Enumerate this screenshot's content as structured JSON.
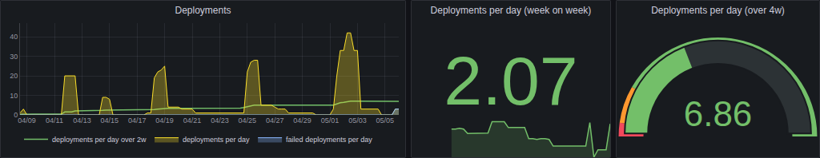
{
  "chart_data": [
    {
      "type": "line",
      "title": "Deployments",
      "categories": [
        null,
        null,
        "04/09",
        null,
        null,
        null,
        null,
        null,
        null,
        null,
        "04/11",
        null,
        null,
        null,
        null,
        null,
        null,
        null,
        "04/13",
        null,
        null,
        null,
        null,
        null,
        null,
        null,
        "04/15",
        null,
        null,
        null,
        null,
        null,
        null,
        null,
        "04/17",
        null,
        null,
        null,
        null,
        null,
        null,
        null,
        "04/19",
        null,
        null,
        null,
        null,
        null,
        null,
        null,
        "04/21",
        null,
        null,
        null,
        null,
        null,
        null,
        null,
        "04/23",
        null,
        null,
        null,
        null,
        null,
        null,
        null,
        "04/25",
        null,
        null,
        null,
        null,
        null,
        null,
        null,
        "04/27",
        null,
        null,
        null,
        null,
        null,
        null,
        null,
        "04/29",
        null,
        null,
        null,
        null,
        null,
        null,
        null,
        "05/01",
        null,
        null,
        null,
        null,
        null,
        null,
        null,
        "05/03",
        null,
        null,
        null,
        null,
        null,
        null,
        null,
        "05/05",
        null,
        null,
        null,
        null
      ],
      "series": [
        {
          "name": "deployments per day over 2w",
          "color": "#73bf69",
          "type": "line",
          "values": [
            0.3,
            0.4,
            0.4,
            0.4,
            0.4,
            0.4,
            0.4,
            0.4,
            0.4,
            0.4,
            0.4,
            0.4,
            0.4,
            1.5,
            1.5,
            1.5,
            2,
            2,
            2,
            2,
            2,
            2,
            2,
            2,
            2.3,
            2.5,
            2.5,
            2.5,
            2.5,
            2.5,
            2.5,
            2.5,
            2.5,
            2.5,
            2.5,
            2.5,
            2.5,
            2.6,
            2.6,
            2.8,
            3,
            3.2,
            3.4,
            3.4,
            3.4,
            3.4,
            3.5,
            3.5,
            3.5,
            3.5,
            3.5,
            3.5,
            3.5,
            3.5,
            3.5,
            3.5,
            3.5,
            3.5,
            3.5,
            3.5,
            3.5,
            3.5,
            3.5,
            3.5,
            3.5,
            3.8,
            4.2,
            4.6,
            5,
            5,
            5,
            5,
            5,
            5,
            5,
            5,
            5,
            5,
            4.8,
            4.8,
            4.8,
            4.8,
            4.8,
            4.8,
            4.8,
            4.8,
            4.8,
            4.8,
            4.8,
            4.8,
            4.8,
            5,
            5.6,
            6.2,
            6.4,
            6.8,
            7,
            7,
            7,
            7,
            7,
            7,
            6.9,
            6.9,
            6.9,
            6.9,
            6.9,
            6.9,
            6.9,
            6.9,
            6.9
          ]
        },
        {
          "name": "deployments per day",
          "color": "#fade2a",
          "type": "area",
          "values": [
            1,
            3,
            0,
            0,
            0,
            0,
            0,
            0,
            0,
            0,
            0,
            0,
            0,
            20,
            20,
            20,
            20,
            0,
            0,
            0,
            0,
            0,
            0,
            0,
            9,
            9,
            8,
            0,
            0,
            0,
            0,
            0,
            0,
            0,
            0,
            0,
            0,
            1,
            1,
            19,
            22,
            23,
            25,
            4,
            4,
            4,
            4,
            3,
            3,
            3,
            3,
            1,
            1,
            1,
            1,
            1,
            1,
            1,
            1,
            1,
            1,
            1,
            1,
            1,
            1,
            1,
            22,
            27,
            28,
            28,
            5,
            5,
            5,
            5,
            4,
            3,
            3,
            3,
            1,
            1,
            1,
            1,
            1,
            1,
            1,
            1,
            0,
            0,
            0,
            0,
            0,
            3,
            20,
            33,
            33,
            42,
            42,
            33,
            33,
            3,
            3,
            3,
            3,
            3,
            3,
            0,
            0,
            0,
            0,
            3,
            3
          ]
        },
        {
          "name": "failed deployments per day",
          "color": "#8ab8ff",
          "type": "area",
          "values": [
            0,
            0,
            0,
            0,
            0,
            0,
            0,
            0,
            0,
            0,
            0,
            0,
            0,
            0,
            0,
            0,
            0,
            0,
            0,
            0,
            0,
            0,
            0,
            0,
            0,
            0,
            0,
            0,
            0,
            0,
            0,
            0,
            0,
            0,
            0,
            0,
            0,
            0,
            0,
            0,
            0,
            0,
            0,
            0,
            0,
            0,
            0,
            0,
            0,
            0,
            0,
            0,
            0,
            0,
            0,
            0,
            0,
            0,
            0,
            0,
            0,
            0,
            0,
            0,
            0,
            0,
            0,
            0,
            0,
            0,
            0,
            0,
            0,
            0,
            0,
            0,
            0,
            0,
            0,
            0,
            0,
            0,
            0,
            0,
            0,
            0,
            0,
            0,
            0,
            0,
            0,
            0,
            0,
            0,
            0,
            0,
            0,
            0,
            0,
            0,
            0,
            0,
            0,
            0,
            0,
            0,
            0,
            0,
            0,
            3,
            3
          ]
        }
      ],
      "ylim": [
        0,
        47
      ],
      "yticks": [
        0,
        10,
        20,
        30,
        40
      ],
      "grid": true,
      "legend": "bottom"
    },
    {
      "type": "stat",
      "title": "Deployments per day (week on week)",
      "value": 2.07,
      "color": "#73bf69",
      "sparkline": [
        1.75,
        1.75,
        1.8,
        1.75,
        1.47,
        1.47,
        1.47,
        1.47,
        1.47,
        1.5,
        2.2,
        2.2,
        2.2,
        2.2,
        1.84,
        1.84,
        1.84,
        1.84,
        1.84,
        1.15,
        1.15,
        1.1,
        1.15,
        1.15,
        1.1,
        0.69,
        0.69,
        0.69,
        0.69,
        0.69,
        0.69,
        0.69,
        0.69,
        0.69,
        2.15,
        0,
        0.46,
        0.46,
        0.46,
        2.07
      ],
      "ylim": [
        0,
        2.3
      ],
      "tick_labels": false
    },
    {
      "type": "gauge",
      "title": "Deployments per day (over 4w)",
      "value": 6.86,
      "color": "#73bf69",
      "ylim": [
        0,
        18
      ],
      "thresholds": [
        {
          "value": 0,
          "color": "#f2495c"
        },
        {
          "value": 0.8,
          "color": "#ff9830"
        },
        {
          "value": 3,
          "color": "#73bf69"
        }
      ],
      "tick_labels": false
    }
  ]
}
